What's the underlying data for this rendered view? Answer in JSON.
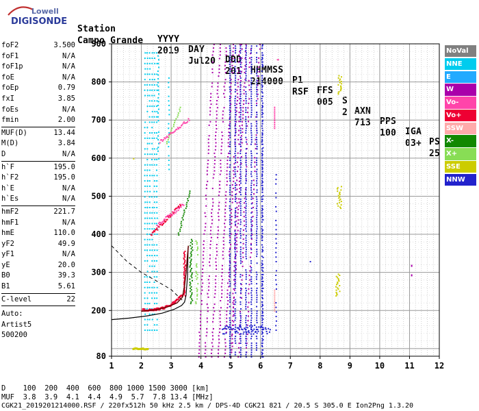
{
  "logo": {
    "brand_top": "Lowell",
    "brand_main": "DIGISONDE"
  },
  "header": {
    "labels": [
      "Station",
      "YYYY",
      "DAY",
      "DDD",
      "HHMMSS",
      "P1",
      "FFS",
      "S",
      "AXN",
      "PPS",
      "IGA",
      "PS"
    ],
    "values": [
      "Campo Grande",
      "2019",
      "Jul20",
      "201",
      "214000",
      "RSF",
      "005",
      "2",
      "713",
      "100",
      "03+",
      "25"
    ]
  },
  "params": {
    "group1": [
      {
        "label": "foF2",
        "value": "3.500"
      },
      {
        "label": "foF1",
        "value": "N/A"
      },
      {
        "label": "foF1p",
        "value": "N/A"
      },
      {
        "label": "foE",
        "value": "N/A"
      },
      {
        "label": "foEp",
        "value": "0.79"
      },
      {
        "label": "fxI",
        "value": "3.85"
      },
      {
        "label": "foEs",
        "value": "N/A"
      },
      {
        "label": "fmin",
        "value": "2.00"
      }
    ],
    "group2": [
      {
        "label": "MUF(D)",
        "value": "13.44"
      },
      {
        "label": "M(D)",
        "value": "3.84"
      },
      {
        "label": "D",
        "value": "N/A"
      }
    ],
    "group3": [
      {
        "label": "h`F",
        "value": "195.0"
      },
      {
        "label": "h`F2",
        "value": "195.0"
      },
      {
        "label": "h`E",
        "value": "N/A"
      },
      {
        "label": "h`Es",
        "value": "N/A"
      }
    ],
    "group4": [
      {
        "label": "hmF2",
        "value": "221.7"
      },
      {
        "label": "hmF1",
        "value": "N/A"
      },
      {
        "label": "hmE",
        "value": "110.0"
      },
      {
        "label": "yF2",
        "value": "49.9"
      },
      {
        "label": "yF1",
        "value": "N/A"
      },
      {
        "label": "yE",
        "value": "20.0"
      },
      {
        "label": "B0",
        "value": "39.3"
      },
      {
        "label": "B1",
        "value": "5.61"
      }
    ],
    "group5": [
      {
        "label": "C-level",
        "value": "22"
      }
    ],
    "auto": [
      "Auto:",
      "Artist5",
      "500200"
    ]
  },
  "legend": [
    {
      "label": "NoVal",
      "color": "#808080"
    },
    {
      "label": "NNE",
      "color": "#00ccee"
    },
    {
      "label": "E",
      "color": "#22aaff"
    },
    {
      "label": "W",
      "color": "#aa00aa"
    },
    {
      "label": "Vo-",
      "color": "#ff44aa"
    },
    {
      "label": "Vo+",
      "color": "#ee0033"
    },
    {
      "label": "SSW",
      "color": "#ffaaaa"
    },
    {
      "label": "X-",
      "color": "#118800"
    },
    {
      "label": "X+",
      "color": "#88dd55"
    },
    {
      "label": "SSE",
      "color": "#cccc00"
    },
    {
      "label": "NNW",
      "color": "#2222cc"
    }
  ],
  "chart_data": {
    "type": "scatter",
    "x_ticks": [
      "1",
      "2",
      "3",
      "4",
      "5",
      "6",
      "7",
      "8",
      "9",
      "10",
      "11",
      "12"
    ],
    "y_ticks": [
      "80",
      "200",
      "300",
      "400",
      "500",
      "600",
      "700",
      "800",
      "900"
    ],
    "xlim": [
      1,
      12
    ],
    "ylim": [
      80,
      900
    ]
  },
  "footer": {
    "d_row": "D    100  200  400  600  800 1000 1500 3000 [km]",
    "muf_row": "MUF  3.8  3.9  4.1  4.4  4.9  5.7  7.8 13.4 [MHz]",
    "info": "CGK21_2019201214000.RSF / 220fx512h 50 kHz 2.5 km / DPS-4D CGK21 821 / 20.5 S 305.0 E Ion2Png 1.3.20"
  }
}
